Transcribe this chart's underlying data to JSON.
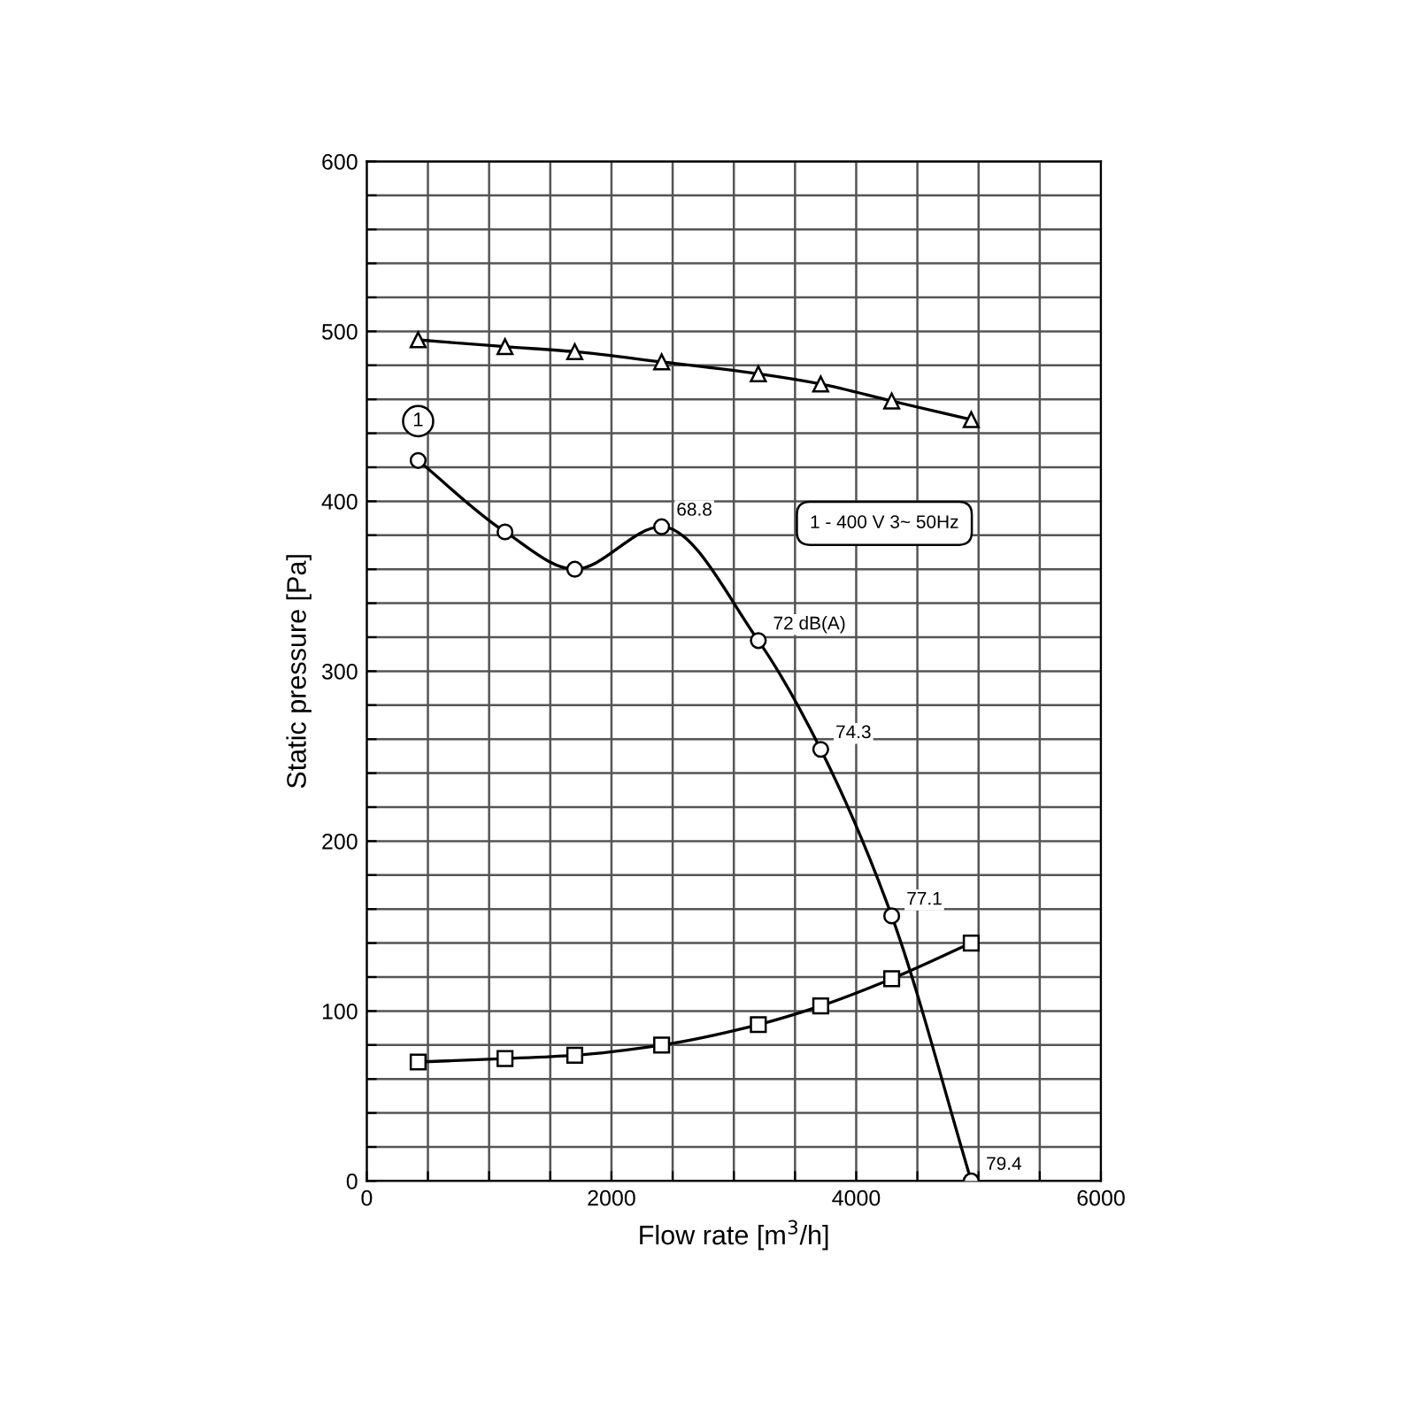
{
  "chart_data": {
    "type": "line",
    "xlabel": "Flow rate [m$^{3}$/h]",
    "ylabel": "Static pressure [Pa]",
    "x": [
      420,
      1130,
      1700,
      2410,
      3200,
      3710,
      4290,
      4940
    ],
    "series": [
      {
        "color": "#000000",
        "marker": "triangle",
        "values": [
          495,
          491,
          488,
          482,
          475,
          469,
          459,
          448
        ]
      },
      {
        "name": "1",
        "color": "#000000",
        "marker": "circle",
        "values": [
          424,
          382,
          360,
          385,
          318,
          254,
          156,
          0
        ]
      },
      {
        "color": "#000000",
        "marker": "square",
        "values": [
          70,
          72,
          74,
          80,
          92,
          103,
          119,
          140
        ]
      }
    ],
    "annotations": [
      {
        "text": "68.8",
        "x": 2410,
        "y": 385
      },
      {
        "text": "72 dB(A)",
        "x": 3200,
        "y": 318
      },
      {
        "text": "74.3",
        "x": 3710,
        "y": 254
      },
      {
        "text": "77.1",
        "x": 4290,
        "y": 156
      },
      {
        "text": "79.4",
        "x": 4940,
        "y": 0
      },
      "1 - 400 V 3~ 50Hz"
    ],
    "xlim": [
      0,
      6000
    ],
    "ylim": [
      0,
      600
    ],
    "xticks": [
      0,
      {
        "value": 500,
        "label": null
      },
      {
        "value": 1000,
        "label": null
      },
      {
        "value": 1500,
        "label": null
      },
      2000,
      {
        "value": 2500,
        "label": null
      },
      {
        "value": 3000,
        "label": null
      },
      {
        "value": 3500,
        "label": null
      },
      4000,
      {
        "value": 4500,
        "label": null
      },
      {
        "value": 5000,
        "label": null
      },
      {
        "value": 5500,
        "label": null
      },
      6000
    ],
    "yticks": [
      0,
      {
        "value": 20,
        "label": null
      },
      {
        "value": 40,
        "label": null
      },
      {
        "value": 60,
        "label": null
      },
      {
        "value": 80,
        "label": null
      },
      100,
      {
        "value": 120,
        "label": null
      },
      {
        "value": 140,
        "label": null
      },
      {
        "value": 160,
        "label": null
      },
      {
        "value": 180,
        "label": null
      },
      200,
      {
        "value": 220,
        "label": null
      },
      {
        "value": 240,
        "label": null
      },
      {
        "value": 260,
        "label": null
      },
      {
        "value": 280,
        "label": null
      },
      300,
      {
        "value": 320,
        "label": null
      },
      {
        "value": 340,
        "label": null
      },
      {
        "value": 360,
        "label": null
      },
      {
        "value": 380,
        "label": null
      },
      400,
      {
        "value": 420,
        "label": null
      },
      {
        "value": 440,
        "label": null
      },
      {
        "value": 460,
        "label": null
      },
      {
        "value": 480,
        "label": null
      },
      500,
      {
        "value": 520,
        "label": null
      },
      {
        "value": 540,
        "label": null
      },
      {
        "value": 560,
        "label": null
      },
      {
        "value": 580,
        "label": null
      },
      600
    ],
    "grid": true
  }
}
